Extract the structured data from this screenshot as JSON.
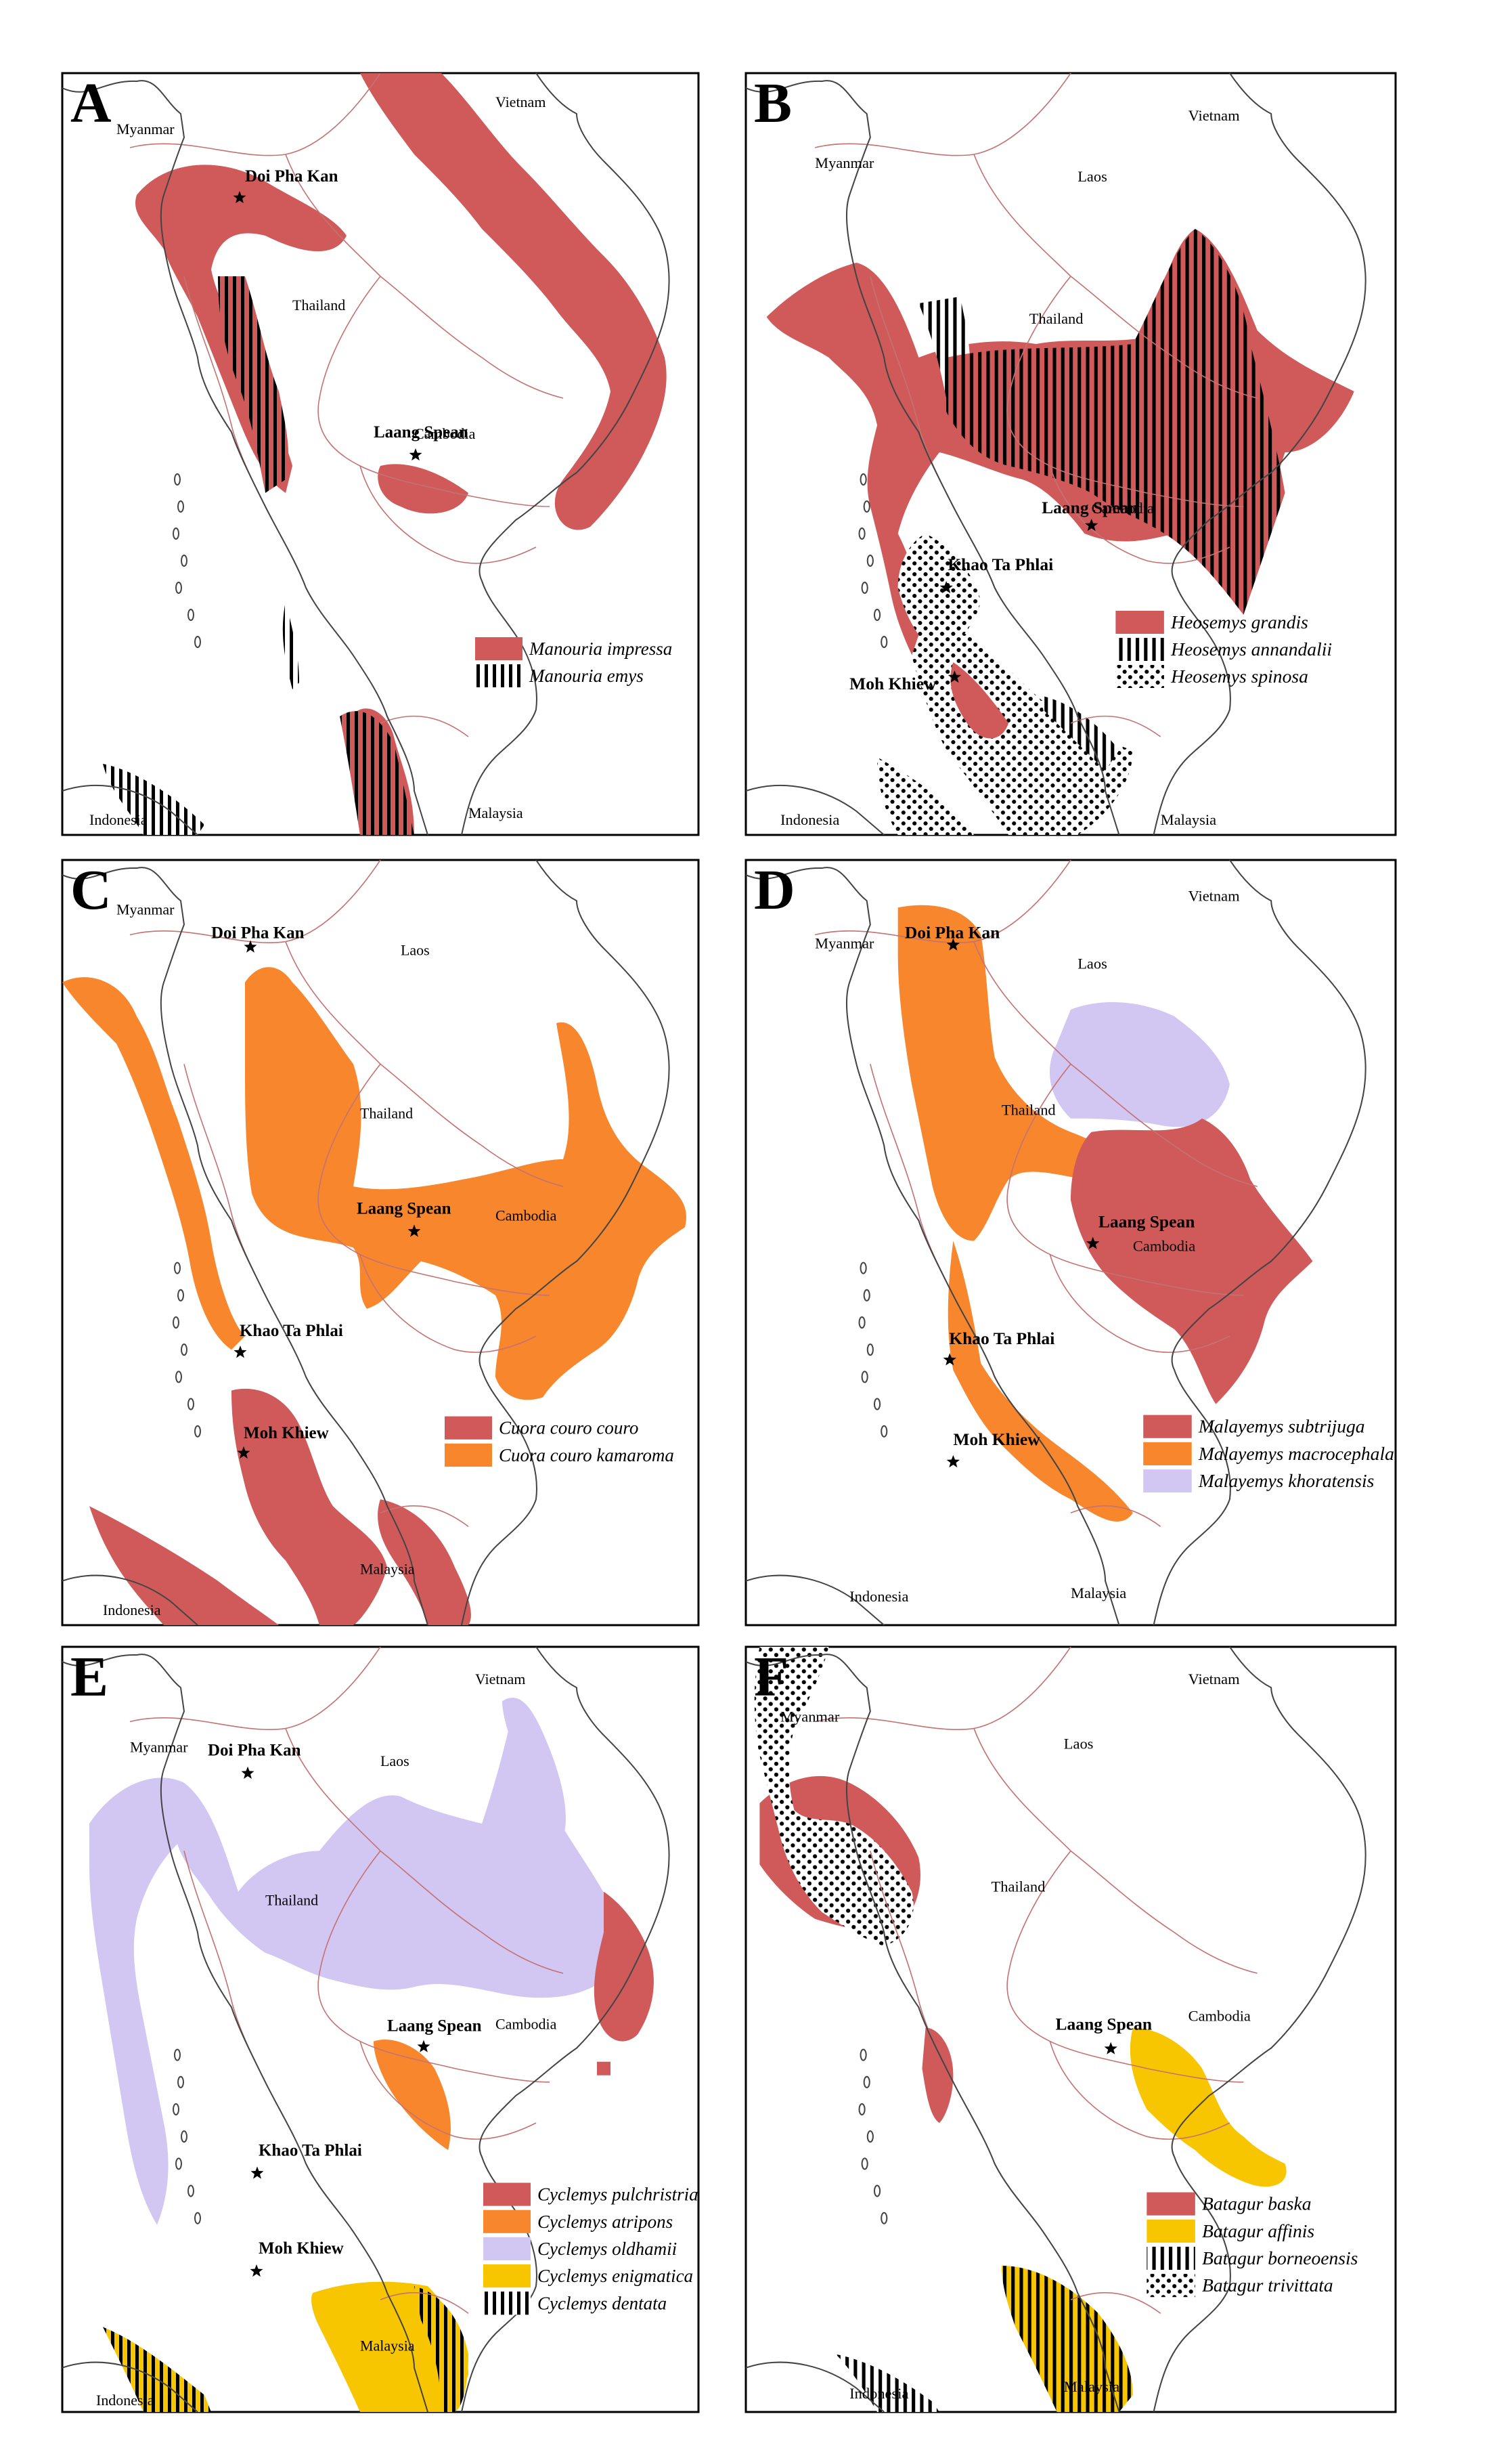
{
  "colors": {
    "red": "#d05a5a",
    "orange": "#f7862d",
    "lavender": "#d2c6f2",
    "yellow": "#f7c600",
    "border": "#c47272",
    "coast": "#444444"
  },
  "panels": [
    {
      "letter": "A",
      "countries": [
        "Myanmar",
        "Vietnam",
        "Thailand",
        "Cambodia",
        "Indonesia",
        "Malaysia"
      ],
      "sites": [
        "Doi Pha Kan",
        "Laang Spean"
      ],
      "legend": [
        {
          "name": "Manouria impressa",
          "fill": "red"
        },
        {
          "name": "Manouria emys",
          "fill": "vstripes"
        }
      ]
    },
    {
      "letter": "B",
      "countries": [
        "Myanmar",
        "Vietnam",
        "Laos",
        "Thailand",
        "Cambodia",
        "Indonesia",
        "Malaysia"
      ],
      "sites": [
        "Laang Spean",
        "Khao Ta Phlai",
        "Moh Khiew"
      ],
      "legend": [
        {
          "name": "Heosemys grandis",
          "fill": "red"
        },
        {
          "name": "Heosemys annandalii",
          "fill": "vstripes"
        },
        {
          "name": "Heosemys spinosa",
          "fill": "dots"
        }
      ]
    },
    {
      "letter": "C",
      "countries": [
        "Myanmar",
        "Laos",
        "Thailand",
        "Cambodia",
        "Indonesia",
        "Malaysia"
      ],
      "sites": [
        "Doi Pha Kan",
        "Laang Spean",
        "Khao Ta Phlai",
        "Moh Khiew"
      ],
      "legend": [
        {
          "name": "Cuora couro couro",
          "fill": "red"
        },
        {
          "name": "Cuora couro kamaroma",
          "fill": "orange"
        }
      ]
    },
    {
      "letter": "D",
      "countries": [
        "Myanmar",
        "Vietnam",
        "Laos",
        "Thailand",
        "Cambodia",
        "Indonesia",
        "Malaysia"
      ],
      "sites": [
        "Doi Pha Kan",
        "Laang Spean",
        "Khao Ta Phlai",
        "Moh Khiew"
      ],
      "legend": [
        {
          "name": "Malayemys subtrijuga",
          "fill": "red"
        },
        {
          "name": "Malayemys macrocephala",
          "fill": "orange"
        },
        {
          "name": "Malayemys khoratensis",
          "fill": "lavender"
        }
      ]
    },
    {
      "letter": "E",
      "countries": [
        "Myanmar",
        "Vietnam",
        "Laos",
        "Thailand",
        "Cambodia",
        "Malaysia",
        "Indonesia"
      ],
      "sites": [
        "Doi Pha Kan",
        "Laang Spean",
        "Khao Ta Phlai",
        "Moh Khiew"
      ],
      "legend": [
        {
          "name": "Cyclemys pulchristriata",
          "fill": "red"
        },
        {
          "name": "Cyclemys atripons",
          "fill": "orange"
        },
        {
          "name": "Cyclemys oldhamii",
          "fill": "lavender"
        },
        {
          "name": "Cyclemys enigmatica",
          "fill": "yellow"
        },
        {
          "name": "Cyclemys dentata",
          "fill": "vstripes"
        }
      ]
    },
    {
      "letter": "F",
      "countries": [
        "Myanmar",
        "Vietnam",
        "Laos",
        "Thailand",
        "Cambodia",
        "Indonesia",
        "Malaysia"
      ],
      "sites": [
        "Laang Spean"
      ],
      "legend": [
        {
          "name": "Batagur baska",
          "fill": "red"
        },
        {
          "name": "Batagur affinis",
          "fill": "yellow"
        },
        {
          "name": "Batagur borneoensis",
          "fill": "vstripes"
        },
        {
          "name": "Batagur trivittata",
          "fill": "dots"
        }
      ]
    }
  ]
}
